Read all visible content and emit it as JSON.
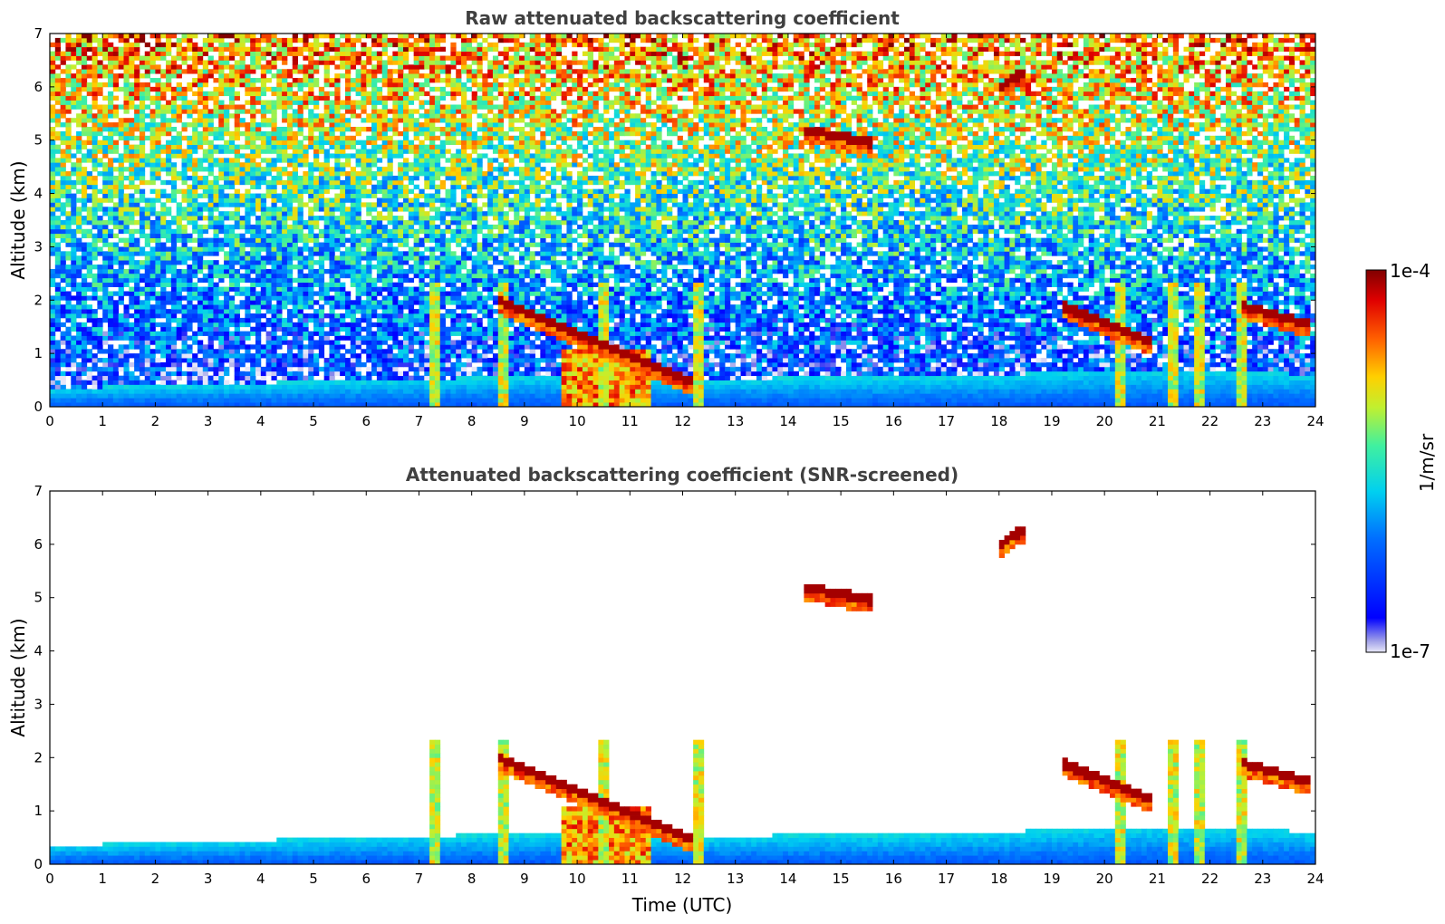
{
  "chart_data": [
    {
      "type": "heatmap",
      "title": "Raw attenuated backscattering coefficient",
      "xlabel": "",
      "ylabel": "Altitude (km)",
      "xlim": [
        0,
        24
      ],
      "ylim": [
        0,
        7
      ],
      "xticks": [
        "0",
        "1",
        "2",
        "3",
        "4",
        "5",
        "6",
        "7",
        "8",
        "9",
        "10",
        "11",
        "12",
        "13",
        "14",
        "15",
        "16",
        "17",
        "18",
        "19",
        "20",
        "21",
        "22",
        "23",
        "24"
      ],
      "yticks": [
        "0",
        "1",
        "2",
        "3",
        "4",
        "5",
        "6",
        "7"
      ],
      "screened": false,
      "features": {
        "boundary_layer_top_km": [
          [
            0,
            0.35
          ],
          [
            2,
            0.4
          ],
          [
            4,
            0.45
          ],
          [
            6,
            0.5
          ],
          [
            8,
            0.55
          ],
          [
            10,
            0.6
          ],
          [
            12,
            0.5
          ],
          [
            14,
            0.55
          ],
          [
            16,
            0.55
          ],
          [
            18,
            0.6
          ],
          [
            20,
            0.7
          ],
          [
            22,
            0.7
          ],
          [
            24,
            0.6
          ]
        ],
        "cloud_layers": [
          {
            "t": [
              8.5,
              12.2
            ],
            "z": [
              2.0,
              0.45
            ],
            "note_values": "high backscatter layer descending"
          },
          {
            "t": [
              14.3,
              15.6
            ],
            "z": [
              5.2,
              4.95
            ]
          },
          {
            "t": [
              18.0,
              18.5
            ],
            "z": [
              6.0,
              6.3
            ]
          },
          {
            "t": [
              19.2,
              20.9
            ],
            "z": [
              1.9,
              1.2
            ]
          },
          {
            "t": [
              22.6,
              23.9
            ],
            "z": [
              1.9,
              1.55
            ]
          }
        ],
        "precipitation_columns_hr": [
          7.3,
          8.6,
          10.5,
          12.3,
          20.3,
          21.3,
          21.8,
          22.6
        ]
      }
    },
    {
      "type": "heatmap",
      "title": "Attenuated backscattering coefficient (SNR-screened)",
      "xlabel": "Time (UTC)",
      "ylabel": "Altitude (km)",
      "xlim": [
        0,
        24
      ],
      "ylim": [
        0,
        7
      ],
      "xticks": [
        "0",
        "1",
        "2",
        "3",
        "4",
        "5",
        "6",
        "7",
        "8",
        "9",
        "10",
        "11",
        "12",
        "13",
        "14",
        "15",
        "16",
        "17",
        "18",
        "19",
        "20",
        "21",
        "22",
        "23",
        "24"
      ],
      "yticks": [
        "0",
        "1",
        "2",
        "3",
        "4",
        "5",
        "6",
        "7"
      ],
      "screened": true
    }
  ],
  "colorbar": {
    "label": "1/m/sr",
    "max_label": "1e-4",
    "min_label": "1e-7",
    "scale": "log",
    "range": [
      1e-07,
      0.0001
    ],
    "colormap": "jet"
  }
}
